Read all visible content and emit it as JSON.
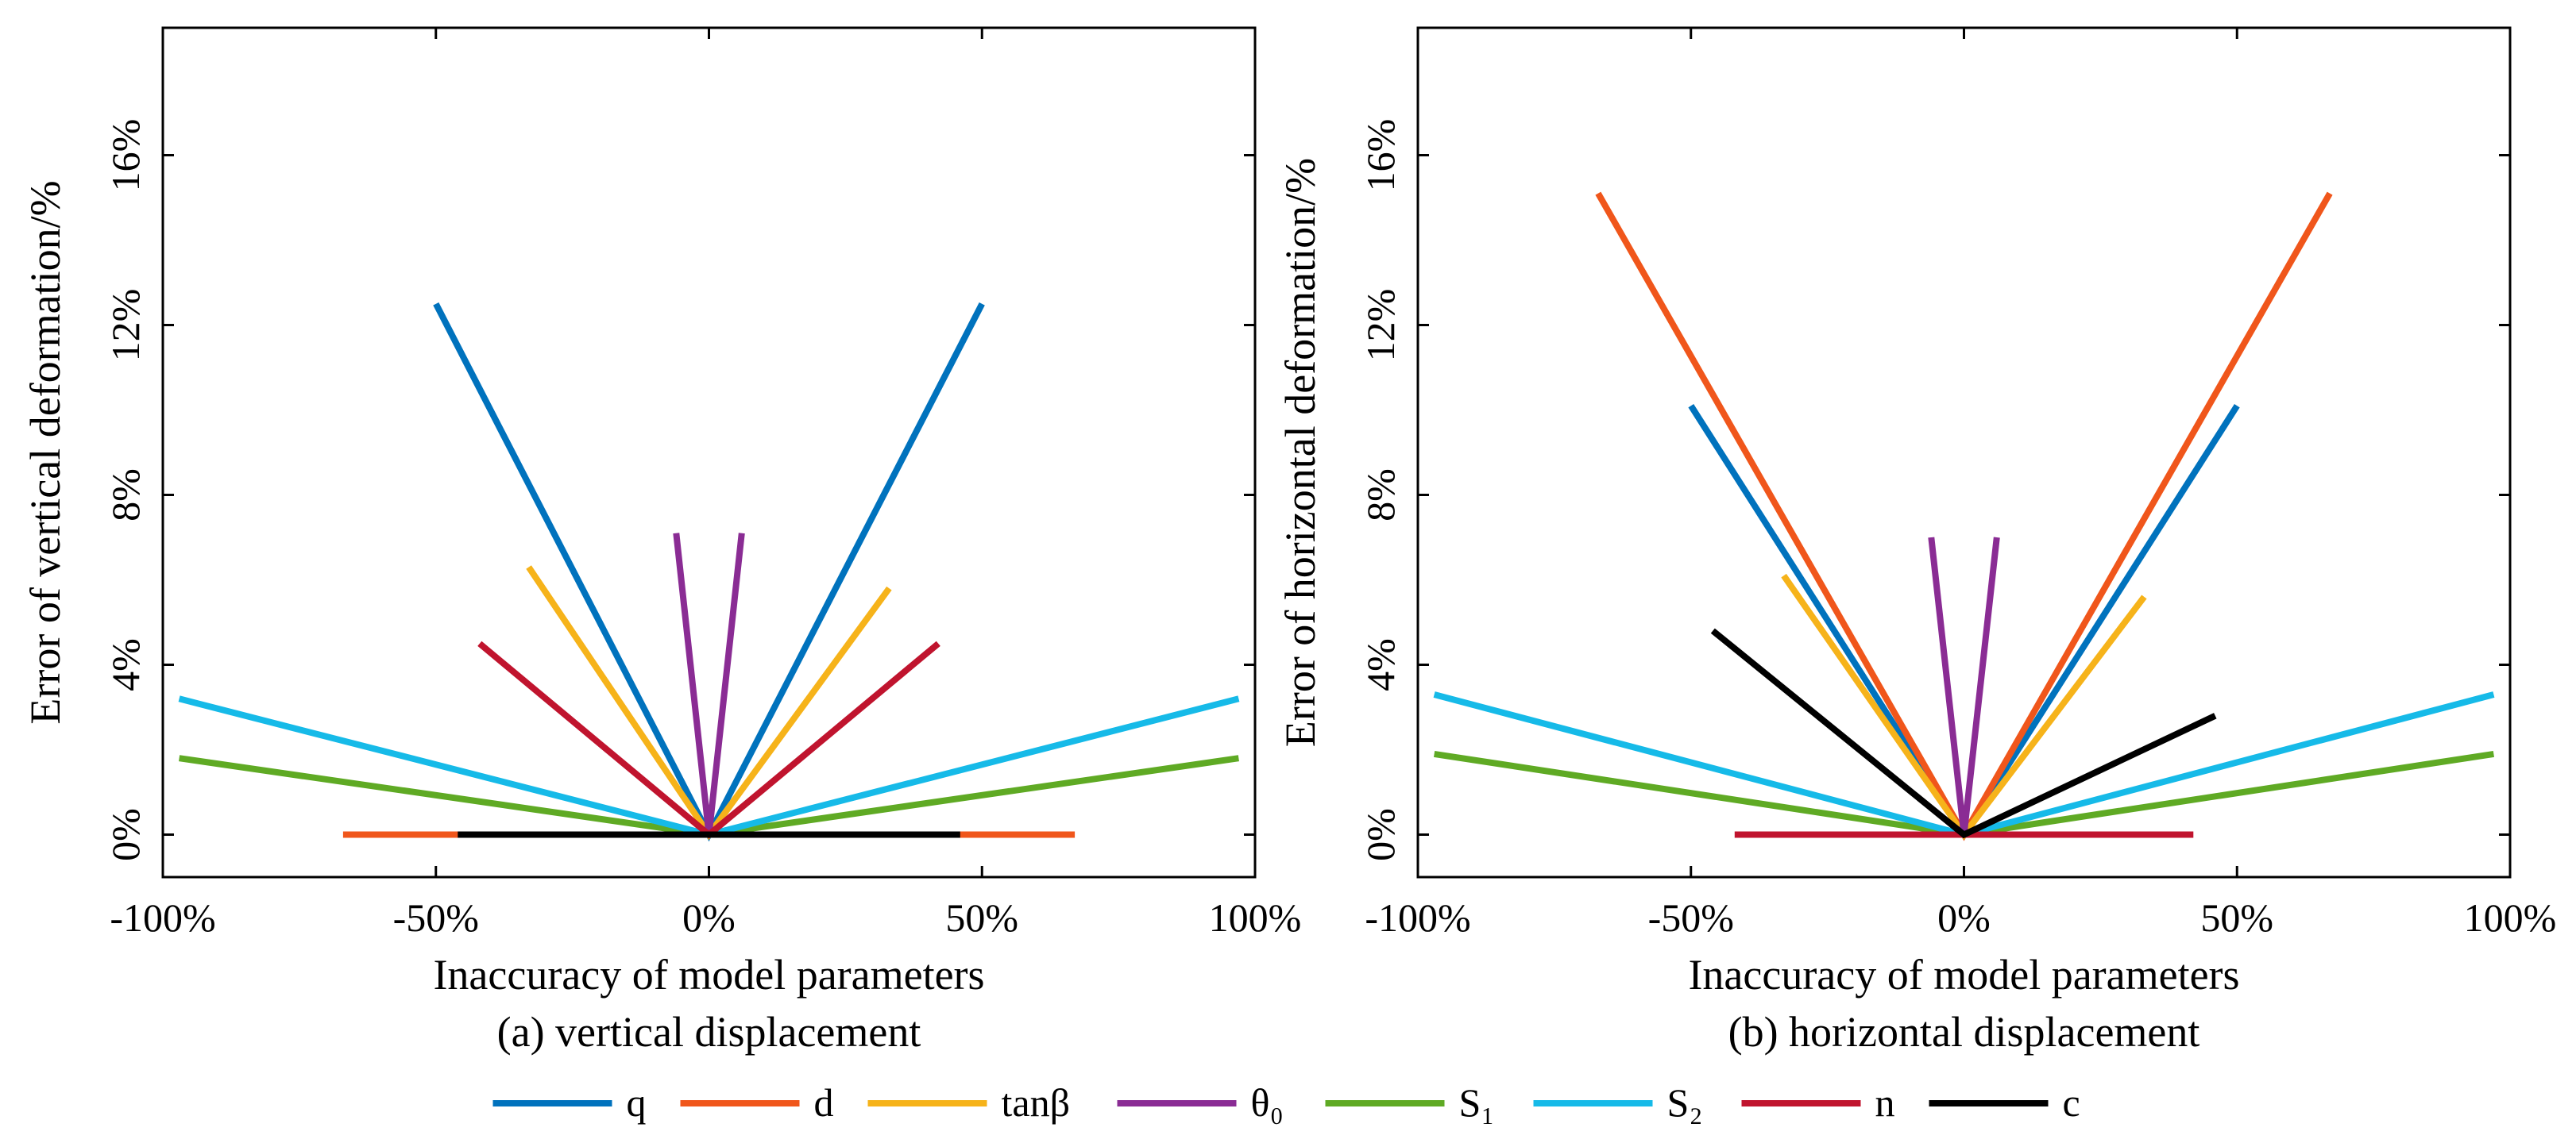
{
  "legend": {
    "placement": "bottom-center",
    "items": [
      {
        "label": "q",
        "color": "#0072BD"
      },
      {
        "label": "d",
        "color": "#F0561B"
      },
      {
        "label": "tanβ",
        "color": "#F6B31A"
      },
      {
        "label": "θ₀",
        "color": "#8A2C94"
      },
      {
        "label": "S₁",
        "color": "#5FAA24"
      },
      {
        "label": "S₂",
        "color": "#16BAE8"
      },
      {
        "label": "n",
        "color": "#C0142E"
      },
      {
        "label": "c",
        "color": "#000000"
      }
    ]
  },
  "chart_data": [
    {
      "type": "line",
      "subtitle": "(a) vertical displacement",
      "xlabel": "Inaccuracy of model parameters",
      "ylabel": "Error of  vertical deformation/%",
      "xlim": [
        -100,
        100
      ],
      "ylim": [
        -1,
        19
      ],
      "x_ticks": [
        -100,
        -50,
        0,
        50,
        100
      ],
      "x_tick_labels": [
        "-100%",
        "-50%",
        "0%",
        "50%",
        "100%"
      ],
      "y_ticks": [
        0,
        4,
        8,
        12,
        16
      ],
      "y_tick_labels": [
        "0%",
        "4%",
        "8%",
        "12%",
        "16%"
      ],
      "grid": false,
      "series": [
        {
          "name": "q",
          "points": [
            [
              -50,
              12.5
            ],
            [
              0,
              0
            ],
            [
              50,
              12.5
            ]
          ]
        },
        {
          "name": "d",
          "points": [
            [
              -67,
              0
            ],
            [
              0,
              0
            ],
            [
              67,
              0
            ]
          ]
        },
        {
          "name": "tanβ",
          "points": [
            [
              -33,
              6.3
            ],
            [
              0,
              0
            ],
            [
              33,
              5.8
            ]
          ]
        },
        {
          "name": "θ₀",
          "points": [
            [
              -6,
              7.1
            ],
            [
              0,
              0
            ],
            [
              6,
              7.1
            ]
          ]
        },
        {
          "name": "S₁",
          "points": [
            [
              -97,
              1.8
            ],
            [
              0,
              0
            ],
            [
              97,
              1.8
            ]
          ]
        },
        {
          "name": "S₂",
          "points": [
            [
              -97,
              3.2
            ],
            [
              0,
              0
            ],
            [
              97,
              3.2
            ]
          ]
        },
        {
          "name": "n",
          "points": [
            [
              -42,
              4.5
            ],
            [
              0,
              0
            ],
            [
              42,
              4.5
            ]
          ]
        },
        {
          "name": "c",
          "points": [
            [
              -46,
              0
            ],
            [
              0,
              0
            ],
            [
              46,
              0
            ]
          ]
        }
      ]
    },
    {
      "type": "line",
      "subtitle": "(b) horizontal displacement",
      "xlabel": "Inaccuracy of model parameters",
      "ylabel": "Error of  horizontal deformation/%",
      "xlim": [
        -100,
        100
      ],
      "ylim": [
        -1,
        19
      ],
      "x_ticks": [
        -100,
        -50,
        0,
        50,
        100
      ],
      "x_tick_labels": [
        "-100%",
        "-50%",
        "0%",
        "50%",
        "100%"
      ],
      "y_ticks": [
        0,
        4,
        8,
        12,
        16
      ],
      "y_tick_labels": [
        "0%",
        "4%",
        "8%",
        "12%",
        "16%"
      ],
      "grid": false,
      "series": [
        {
          "name": "q",
          "points": [
            [
              -50,
              10.1
            ],
            [
              0,
              0
            ],
            [
              50,
              10.1
            ]
          ]
        },
        {
          "name": "d",
          "points": [
            [
              -67,
              15.1
            ],
            [
              0,
              0
            ],
            [
              67,
              15.1
            ]
          ]
        },
        {
          "name": "tanβ",
          "points": [
            [
              -33,
              6.1
            ],
            [
              0,
              0
            ],
            [
              33,
              5.6
            ]
          ]
        },
        {
          "name": "θ₀",
          "points": [
            [
              -6,
              7.0
            ],
            [
              0,
              0
            ],
            [
              6,
              7.0
            ]
          ]
        },
        {
          "name": "S₁",
          "points": [
            [
              -97,
              1.9
            ],
            [
              0,
              0
            ],
            [
              97,
              1.9
            ]
          ]
        },
        {
          "name": "S₂",
          "points": [
            [
              -97,
              3.3
            ],
            [
              0,
              0
            ],
            [
              97,
              3.3
            ]
          ]
        },
        {
          "name": "n",
          "points": [
            [
              -42,
              0
            ],
            [
              0,
              0
            ],
            [
              42,
              0
            ]
          ]
        },
        {
          "name": "c",
          "points": [
            [
              -46,
              4.8
            ],
            [
              0,
              0
            ],
            [
              46,
              2.8
            ]
          ]
        }
      ]
    }
  ]
}
